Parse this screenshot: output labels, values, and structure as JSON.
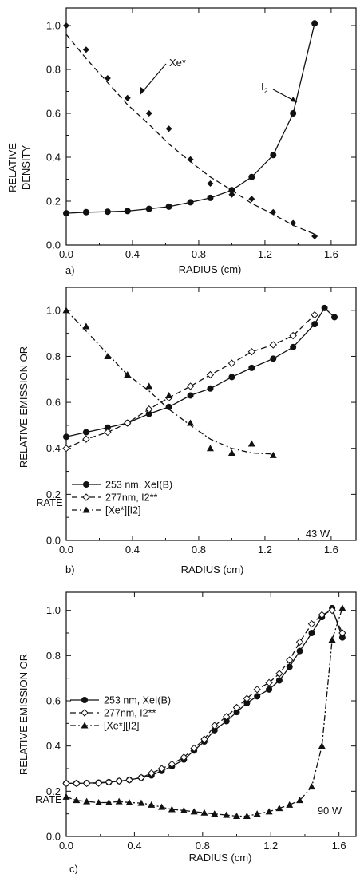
{
  "chart_data": [
    {
      "type": "line",
      "panel_label": "a)",
      "xlabel": "RADIUS (cm)",
      "ylabel": "RELATIVE DENSITY",
      "xlim": [
        0,
        1.75
      ],
      "ylim": [
        0,
        1.08
      ],
      "xticks": [
        "0.0",
        "0.4",
        "0.8",
        "1.2",
        "1.6"
      ],
      "yticks": [
        "0.0",
        "0.2",
        "0.4",
        "0.6",
        "0.8",
        "1.0"
      ],
      "grid": false,
      "annotations": [
        {
          "text": "Xe*",
          "series": "Xe*"
        },
        {
          "text": "I2",
          "series": "I2"
        }
      ],
      "series": [
        {
          "name": "Xe*",
          "marker": "diamond",
          "line": "dashed",
          "x": [
            0.0,
            0.12,
            0.25,
            0.37,
            0.5,
            0.62,
            0.75,
            0.87,
            1.0,
            1.12,
            1.25,
            1.37,
            1.5
          ],
          "y": [
            1.0,
            0.89,
            0.76,
            0.67,
            0.6,
            0.53,
            0.39,
            0.28,
            0.23,
            0.21,
            0.15,
            0.1,
            0.04
          ],
          "fit_y": [
            0.96,
            0.85,
            0.74,
            0.64,
            0.55,
            0.46,
            0.38,
            0.31,
            0.25,
            0.19,
            0.14,
            0.09,
            0.05
          ]
        },
        {
          "name": "I2",
          "marker": "circle",
          "line": "solid",
          "x": [
            0.0,
            0.12,
            0.25,
            0.37,
            0.5,
            0.62,
            0.75,
            0.87,
            1.0,
            1.12,
            1.25,
            1.37,
            1.5
          ],
          "y": [
            0.145,
            0.15,
            0.152,
            0.155,
            0.165,
            0.175,
            0.195,
            0.215,
            0.25,
            0.31,
            0.41,
            0.6,
            1.01
          ]
        }
      ]
    },
    {
      "type": "line",
      "panel_label": "b)",
      "xlabel": "RADIUS (cm)",
      "ylabel": "RELATIVE EMISSION OR RATE",
      "xlim": [
        0,
        1.75
      ],
      "ylim": [
        0,
        1.1
      ],
      "xticks": [
        "0.0",
        "0.4",
        "0.8",
        "1.2",
        "1.6"
      ],
      "yticks": [
        "0.0",
        "0.2",
        "0.4",
        "0.6",
        "0.8",
        "1.0"
      ],
      "grid": false,
      "power_label": "43 W",
      "legend_position": "bottom-left",
      "series": [
        {
          "name": "253 nm, XeI(B)",
          "marker": "circle",
          "line": "solid",
          "x": [
            0.0,
            0.12,
            0.25,
            0.37,
            0.5,
            0.62,
            0.75,
            0.87,
            1.0,
            1.12,
            1.25,
            1.37,
            1.5,
            1.56,
            1.62
          ],
          "y": [
            0.45,
            0.47,
            0.49,
            0.51,
            0.55,
            0.58,
            0.63,
            0.66,
            0.71,
            0.75,
            0.79,
            0.84,
            0.94,
            1.01,
            0.97
          ]
        },
        {
          "name": "277nm, I2**",
          "marker": "open-diamond",
          "line": "dashed",
          "x": [
            0.0,
            0.12,
            0.25,
            0.37,
            0.5,
            0.62,
            0.75,
            0.87,
            1.0,
            1.12,
            1.25,
            1.37,
            1.5
          ],
          "y": [
            0.4,
            0.44,
            0.47,
            0.51,
            0.57,
            0.62,
            0.67,
            0.72,
            0.77,
            0.82,
            0.85,
            0.89,
            0.98
          ]
        },
        {
          "name": "[Xe*][I2]",
          "marker": "triangle",
          "line": "dashdot",
          "x": [
            0.0,
            0.12,
            0.25,
            0.37,
            0.5,
            0.62,
            0.75,
            0.87,
            1.0,
            1.12,
            1.25
          ],
          "y": [
            1.0,
            0.93,
            0.8,
            0.72,
            0.67,
            0.63,
            0.51,
            0.4,
            0.38,
            0.42,
            0.37
          ],
          "fit_y": [
            1.0,
            0.91,
            0.81,
            0.72,
            0.65,
            0.57,
            0.5,
            0.44,
            0.4,
            0.38,
            0.375
          ]
        }
      ]
    },
    {
      "type": "line",
      "panel_label": "c)",
      "xlabel": "RADIUS (cm)",
      "ylabel": "RELATIVE EMISSION OR RATE",
      "xlim": [
        0,
        1.7
      ],
      "ylim": [
        0,
        1.08
      ],
      "xticks": [
        "0.0",
        "0.4",
        "0.8",
        "1.2",
        "1.6"
      ],
      "yticks": [
        "0.0",
        "0.2",
        "0.4",
        "0.6",
        "0.8",
        "1.0"
      ],
      "grid": false,
      "power_label": "90 W",
      "legend_position": "middle-left",
      "series": [
        {
          "name": "253 nm, XeI(B)",
          "marker": "circle",
          "line": "solid",
          "x": [
            0.0,
            0.06,
            0.12,
            0.19,
            0.25,
            0.31,
            0.37,
            0.44,
            0.5,
            0.56,
            0.62,
            0.69,
            0.75,
            0.81,
            0.87,
            0.94,
            1.0,
            1.06,
            1.12,
            1.19,
            1.25,
            1.31,
            1.37,
            1.44,
            1.5,
            1.56,
            1.62
          ],
          "y": [
            0.235,
            0.235,
            0.236,
            0.238,
            0.24,
            0.245,
            0.25,
            0.26,
            0.27,
            0.29,
            0.31,
            0.34,
            0.38,
            0.42,
            0.47,
            0.51,
            0.55,
            0.59,
            0.62,
            0.65,
            0.69,
            0.75,
            0.82,
            0.9,
            0.97,
            1.01,
            0.88
          ]
        },
        {
          "name": "277nm, I2**",
          "marker": "open-diamond",
          "line": "dashed",
          "x": [
            0.0,
            0.06,
            0.12,
            0.19,
            0.25,
            0.31,
            0.37,
            0.44,
            0.5,
            0.56,
            0.62,
            0.69,
            0.75,
            0.81,
            0.87,
            0.94,
            1.0,
            1.06,
            1.12,
            1.19,
            1.25,
            1.31,
            1.37,
            1.44,
            1.5,
            1.56,
            1.62
          ],
          "y": [
            0.235,
            0.235,
            0.235,
            0.236,
            0.24,
            0.245,
            0.25,
            0.26,
            0.28,
            0.3,
            0.32,
            0.35,
            0.39,
            0.43,
            0.49,
            0.53,
            0.57,
            0.61,
            0.65,
            0.68,
            0.72,
            0.78,
            0.86,
            0.94,
            0.98,
            1.0,
            0.9
          ]
        },
        {
          "name": "[Xe*][I2]",
          "marker": "triangle",
          "line": "dashdot",
          "x": [
            0.0,
            0.06,
            0.12,
            0.19,
            0.25,
            0.31,
            0.37,
            0.44,
            0.5,
            0.56,
            0.62,
            0.69,
            0.75,
            0.81,
            0.87,
            0.94,
            1.0,
            1.06,
            1.12,
            1.19,
            1.25,
            1.31,
            1.37,
            1.44,
            1.5,
            1.56,
            1.62
          ],
          "y": [
            0.175,
            0.16,
            0.155,
            0.15,
            0.15,
            0.155,
            0.15,
            0.148,
            0.14,
            0.13,
            0.12,
            0.115,
            0.11,
            0.105,
            0.1,
            0.095,
            0.09,
            0.09,
            0.1,
            0.11,
            0.125,
            0.14,
            0.16,
            0.22,
            0.4,
            0.87,
            1.01
          ]
        }
      ]
    }
  ]
}
